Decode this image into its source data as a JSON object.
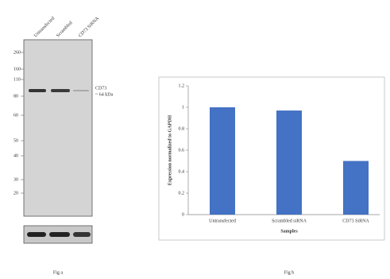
{
  "blot": {
    "lanes": [
      "Untransfected",
      "Scrambled",
      "CD73 SiRNA"
    ],
    "markers": [
      260,
      160,
      110,
      80,
      60,
      50,
      40,
      30,
      20
    ],
    "band_name": "CD73",
    "band_size": "~ 64 kDa",
    "caption": "Fig a"
  },
  "chart_data": {
    "type": "bar",
    "caption": "Fig b",
    "categories": [
      "Untransfected",
      "Scrambled siRNA",
      "CD73 SiRNA"
    ],
    "values": [
      1,
      0.97,
      0.5
    ],
    "color": "#4472c4",
    "ylim": [
      0,
      1.2
    ],
    "yticks": [
      0,
      0.2,
      0.4,
      0.6,
      0.8,
      1,
      1.2
    ],
    "y_label": "Expression normalized to GAPDH",
    "x_label": "Samples"
  }
}
